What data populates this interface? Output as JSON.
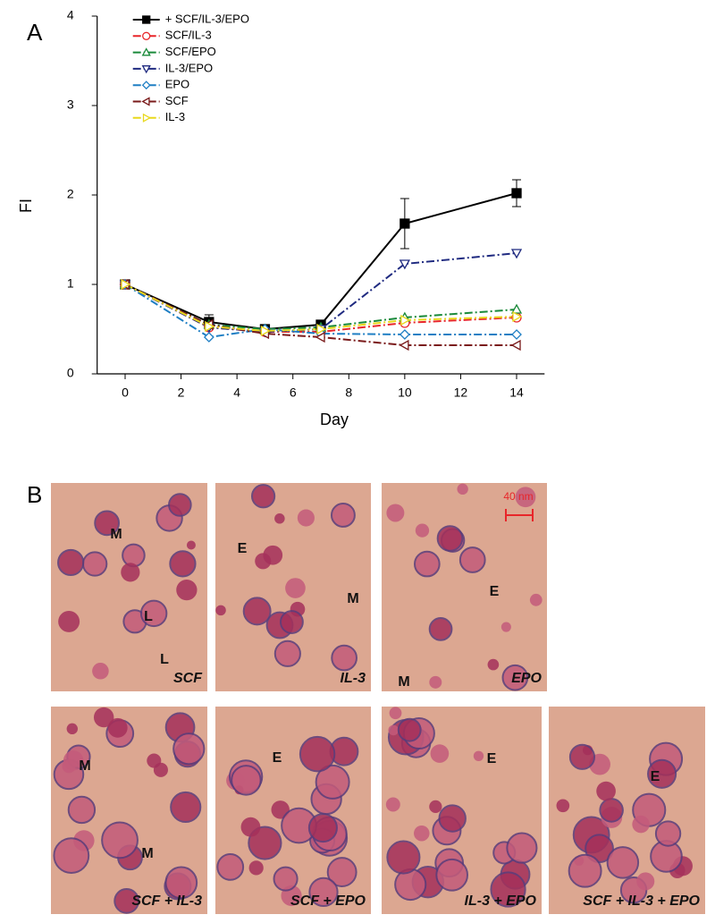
{
  "chart_data": {
    "type": "line",
    "panel_label": "A",
    "x_label": "Day",
    "y_label": "FI",
    "x": [
      0,
      3,
      5,
      7,
      10,
      14
    ],
    "xlim": [
      -1,
      15
    ],
    "xticks": [
      0,
      2,
      4,
      6,
      8,
      10,
      12,
      14
    ],
    "ylim": [
      0,
      4
    ],
    "yticks": [
      0,
      1,
      2,
      3,
      4
    ],
    "legend": "upper-left",
    "series": [
      {
        "name": "+ SCF/IL-3/EPO",
        "color": "#000000",
        "marker": "square-filled",
        "dash": "solid",
        "values": [
          1,
          0.58,
          0.5,
          0.55,
          1.68,
          2.02
        ],
        "errors": [
          0,
          0.08,
          0.04,
          0.03,
          0.28,
          0.15
        ]
      },
      {
        "name": "SCF/IL-3",
        "color": "#e8262a",
        "marker": "circle",
        "dash": "dashdot",
        "values": [
          1,
          0.52,
          0.47,
          0.47,
          0.57,
          0.63
        ]
      },
      {
        "name": "SCF/EPO",
        "color": "#1a8a3a",
        "marker": "triangle-up",
        "dash": "dashdot",
        "values": [
          1,
          0.55,
          0.5,
          0.52,
          0.63,
          0.72
        ]
      },
      {
        "name": "IL-3/EPO",
        "color": "#1f2a80",
        "marker": "triangle-down",
        "dash": "dashdot",
        "values": [
          1,
          0.52,
          0.47,
          0.5,
          1.23,
          1.35
        ]
      },
      {
        "name": "EPO",
        "color": "#1f7fc4",
        "marker": "diamond",
        "dash": "dashdot",
        "values": [
          1,
          0.41,
          0.5,
          0.45,
          0.44,
          0.44
        ]
      },
      {
        "name": "SCF",
        "color": "#7a1a1a",
        "marker": "triangle-left",
        "dash": "dashdot",
        "values": [
          1,
          0.55,
          0.45,
          0.41,
          0.32,
          0.32
        ]
      },
      {
        "name": "IL-3",
        "color": "#e8d81c",
        "marker": "triangle-right",
        "dash": "dashdot",
        "values": [
          1,
          0.53,
          0.48,
          0.5,
          0.6,
          0.64
        ]
      }
    ]
  },
  "panel_b": {
    "panel_label": "B",
    "scale_bar": "40 nm",
    "micrographs": [
      {
        "caption": "SCF",
        "annotations": [
          "M",
          "L",
          "L"
        ]
      },
      {
        "caption": "IL-3",
        "annotations": [
          "E",
          "M"
        ]
      },
      {
        "caption": "EPO",
        "annotations": [
          "E",
          "M"
        ]
      },
      {
        "caption": "SCF + IL-3",
        "annotations": [
          "M",
          "M"
        ]
      },
      {
        "caption": "SCF + EPO",
        "annotations": [
          "E"
        ]
      },
      {
        "caption": "IL-3 + EPO",
        "annotations": [
          "E"
        ]
      },
      {
        "caption": "SCF + IL-3 + EPO",
        "annotations": [
          "E"
        ]
      }
    ]
  }
}
